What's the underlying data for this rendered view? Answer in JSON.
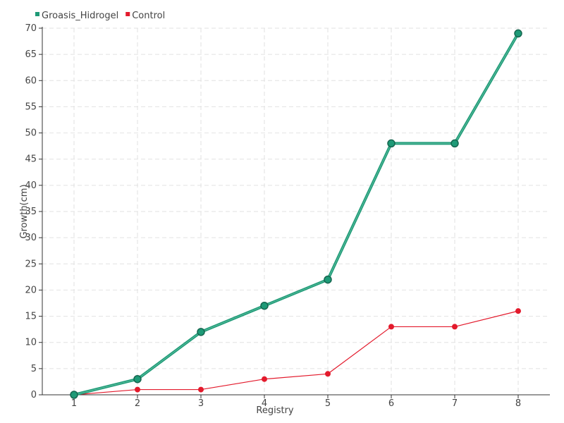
{
  "chart_data": {
    "type": "line",
    "xlabel": "Registry",
    "ylabel": "Growth(cm)",
    "x": [
      1,
      2,
      3,
      4,
      5,
      6,
      7,
      8
    ],
    "ylim": [
      0,
      70
    ],
    "ytick_step": 5,
    "grid": true,
    "legend_position": "top-left",
    "series": [
      {
        "name": "Groasis_Hidrogel",
        "color": "#1e9a77",
        "values": [
          0,
          3,
          12,
          17,
          22,
          48,
          48,
          69
        ]
      },
      {
        "name": "Control",
        "color": "#e31a2c",
        "values": [
          0,
          1,
          1,
          3,
          4,
          13,
          13,
          16
        ]
      }
    ]
  }
}
